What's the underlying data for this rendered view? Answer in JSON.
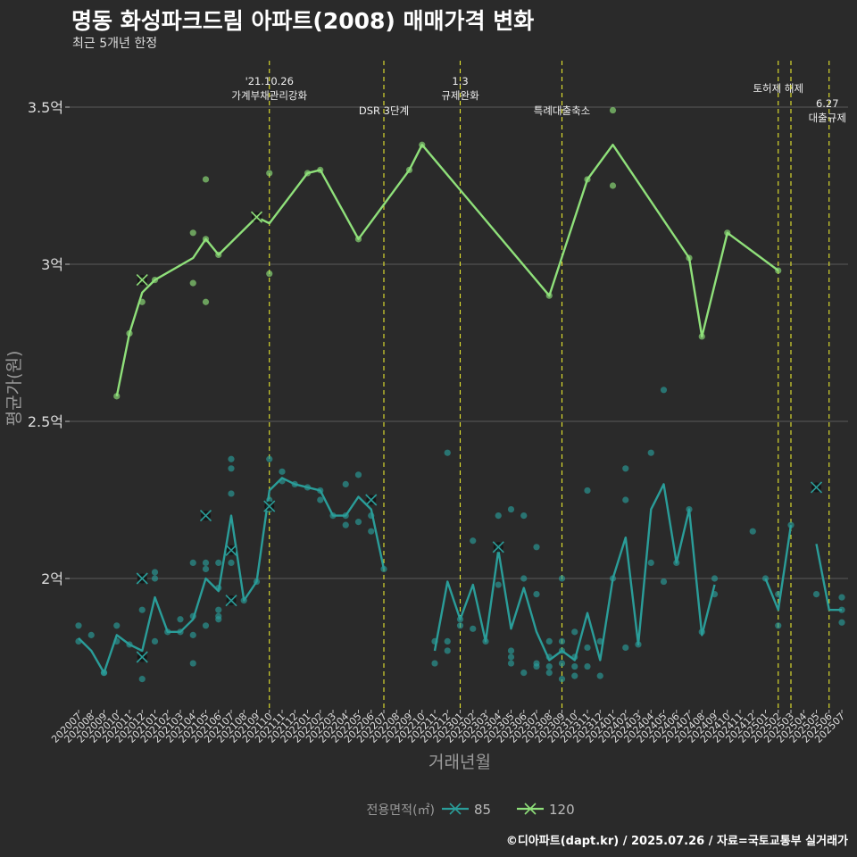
{
  "title": "명동 화성파크드림 아파트(2008) 매매가격 변화",
  "subtitle": "최근 5개년 한정",
  "caption": "©디아파트(dapt.kr) / 2025.07.26 / 자료=국토교통부 실거래가",
  "colors": {
    "background": "#2a2a2a",
    "grid": "#5a5a5a",
    "series_85": "#2a9d99",
    "series_120": "#8fe07a",
    "event_line": "#e6e62e",
    "text": "#e8e8e8"
  },
  "chart_data": {
    "type": "line",
    "xlabel": "거래년월",
    "ylabel": "평균가(원)",
    "ylim": [
      1.6,
      3.65
    ],
    "y_unit": "억",
    "yticks": [
      {
        "v": 2.0,
        "label": "2억"
      },
      {
        "v": 2.5,
        "label": "2.5억"
      },
      {
        "v": 3.0,
        "label": "3억"
      },
      {
        "v": 3.5,
        "label": "3.5억"
      }
    ],
    "grid": true,
    "x_categories": [
      "202007",
      "202008",
      "202009",
      "202010",
      "202011",
      "202012",
      "202101",
      "202102",
      "202103",
      "202104",
      "202105",
      "202106",
      "202107",
      "202108",
      "202109",
      "202110",
      "202111",
      "202112",
      "202201",
      "202202",
      "202203",
      "202204",
      "202205",
      "202206",
      "202207",
      "202208",
      "202209",
      "202210",
      "202211",
      "202212",
      "202301",
      "202302",
      "202303",
      "202304",
      "202305",
      "202306",
      "202307",
      "202308",
      "202309",
      "202310",
      "202311",
      "202312",
      "202401",
      "202402",
      "202403",
      "202404",
      "202405",
      "202406",
      "202407",
      "202408",
      "202409",
      "202410",
      "202411",
      "202412",
      "202501",
      "202502",
      "202503",
      "202504",
      "202505",
      "202506",
      "202507"
    ],
    "legend": {
      "title": "전용면적(㎡)",
      "placement": "bottom",
      "items": [
        "85",
        "120"
      ]
    },
    "events": [
      {
        "month": "202110",
        "label": "'21.10.26\n가계부채관리강화"
      },
      {
        "month": "202207",
        "label": "DSR 3단계"
      },
      {
        "month": "202301",
        "label": "1.3\n규제완화"
      },
      {
        "month": "202309",
        "label": "특례대출축소"
      },
      {
        "month": "202502",
        "label": "토허제 해제"
      },
      {
        "month": "202503",
        "label": ""
      },
      {
        "month": "202506",
        "label": "6.27\n대출규제"
      }
    ],
    "series": [
      {
        "name": "85",
        "line": [
          [
            0,
            1.81
          ],
          [
            1,
            1.77
          ],
          [
            2,
            1.7
          ],
          [
            3,
            1.82
          ],
          [
            4,
            1.79
          ],
          [
            5,
            1.77
          ],
          [
            6,
            1.94
          ],
          [
            7,
            1.83
          ],
          [
            8,
            1.83
          ],
          [
            9,
            1.87
          ],
          [
            10,
            2.0
          ],
          [
            11,
            1.96
          ],
          [
            12,
            2.2
          ],
          [
            13,
            1.93
          ],
          [
            14,
            1.99
          ],
          [
            15,
            2.28
          ],
          [
            16,
            2.32
          ],
          [
            17,
            2.3
          ],
          [
            18,
            2.29
          ],
          [
            19,
            2.28
          ],
          [
            20,
            2.2
          ],
          [
            21,
            2.2
          ],
          [
            22,
            2.26
          ],
          [
            23,
            2.22
          ],
          [
            24,
            2.03
          ],
          null,
          null,
          null,
          [
            28,
            1.77
          ],
          [
            29,
            1.99
          ],
          [
            30,
            1.87
          ],
          [
            31,
            1.98
          ],
          [
            32,
            1.8
          ],
          [
            33,
            2.09
          ],
          [
            34,
            1.84
          ],
          [
            35,
            1.97
          ],
          [
            36,
            1.83
          ],
          [
            37,
            1.74
          ],
          [
            38,
            1.77
          ],
          [
            39,
            1.74
          ],
          [
            40,
            1.89
          ],
          [
            41,
            1.74
          ],
          [
            42,
            2.0
          ],
          [
            43,
            2.13
          ],
          [
            44,
            1.79
          ],
          [
            45,
            2.22
          ],
          [
            46,
            2.3
          ],
          [
            47,
            2.05
          ],
          [
            48,
            2.22
          ],
          [
            49,
            1.82
          ],
          [
            50,
            1.98
          ],
          null,
          null,
          null,
          [
            54,
            2.0
          ],
          [
            55,
            1.9
          ],
          [
            56,
            2.17
          ],
          null,
          [
            58,
            2.11
          ],
          [
            59,
            1.9
          ],
          [
            60,
            1.9
          ]
        ],
        "points": [
          [
            0,
            1.85
          ],
          [
            0,
            1.8
          ],
          [
            1,
            1.82
          ],
          [
            2,
            1.7
          ],
          [
            2,
            1.7
          ],
          [
            3,
            1.85
          ],
          [
            3,
            1.8
          ],
          [
            4,
            1.79
          ],
          [
            5,
            1.9
          ],
          [
            5,
            1.68
          ],
          [
            6,
            2.02
          ],
          [
            6,
            2.0
          ],
          [
            6,
            1.8
          ],
          [
            7,
            1.83
          ],
          [
            8,
            1.87
          ],
          [
            8,
            1.83
          ],
          [
            9,
            2.05
          ],
          [
            9,
            1.88
          ],
          [
            9,
            1.82
          ],
          [
            9,
            1.73
          ],
          [
            10,
            2.05
          ],
          [
            10,
            2.03
          ],
          [
            10,
            1.85
          ],
          [
            11,
            2.05
          ],
          [
            11,
            1.97
          ],
          [
            11,
            1.9
          ],
          [
            11,
            1.88
          ],
          [
            11,
            1.87
          ],
          [
            12,
            2.38
          ],
          [
            12,
            2.35
          ],
          [
            12,
            2.27
          ],
          [
            12,
            2.05
          ],
          [
            12,
            1.93
          ],
          [
            13,
            1.93
          ],
          [
            14,
            1.99
          ],
          [
            15,
            2.38
          ],
          [
            15,
            2.25
          ],
          [
            15,
            2.22
          ],
          [
            16,
            2.34
          ],
          [
            16,
            2.31
          ],
          [
            17,
            2.3
          ],
          [
            18,
            2.29
          ],
          [
            19,
            2.28
          ],
          [
            19,
            2.25
          ],
          [
            20,
            2.2
          ],
          [
            21,
            2.3
          ],
          [
            21,
            2.2
          ],
          [
            21,
            2.17
          ],
          [
            22,
            2.33
          ],
          [
            22,
            2.18
          ],
          [
            23,
            2.2
          ],
          [
            23,
            2.15
          ],
          [
            24,
            2.03
          ],
          [
            28,
            1.8
          ],
          [
            28,
            1.73
          ],
          [
            29,
            2.4
          ],
          [
            29,
            1.8
          ],
          [
            29,
            1.77
          ],
          [
            30,
            1.87
          ],
          [
            30,
            1.85
          ],
          [
            31,
            2.12
          ],
          [
            31,
            1.84
          ],
          [
            32,
            1.8
          ],
          [
            33,
            2.2
          ],
          [
            33,
            2.1
          ],
          [
            33,
            1.98
          ],
          [
            34,
            2.22
          ],
          [
            34,
            1.77
          ],
          [
            34,
            1.75
          ],
          [
            34,
            1.73
          ],
          [
            35,
            2.2
          ],
          [
            35,
            2.0
          ],
          [
            35,
            1.7
          ],
          [
            36,
            2.1
          ],
          [
            36,
            1.95
          ],
          [
            36,
            1.73
          ],
          [
            36,
            1.72
          ],
          [
            37,
            1.8
          ],
          [
            37,
            1.75
          ],
          [
            37,
            1.72
          ],
          [
            37,
            1.7
          ],
          [
            38,
            2.0
          ],
          [
            38,
            1.8
          ],
          [
            38,
            1.77
          ],
          [
            38,
            1.73
          ],
          [
            38,
            1.68
          ],
          [
            39,
            1.83
          ],
          [
            39,
            1.75
          ],
          [
            39,
            1.72
          ],
          [
            39,
            1.69
          ],
          [
            40,
            2.28
          ],
          [
            40,
            1.78
          ],
          [
            40,
            1.72
          ],
          [
            41,
            1.8
          ],
          [
            41,
            1.69
          ],
          [
            42,
            2.0
          ],
          [
            43,
            2.35
          ],
          [
            43,
            2.25
          ],
          [
            43,
            1.78
          ],
          [
            44,
            1.79
          ],
          [
            45,
            2.4
          ],
          [
            45,
            2.05
          ],
          [
            46,
            2.6
          ],
          [
            46,
            1.99
          ],
          [
            47,
            2.05
          ],
          [
            48,
            2.22
          ],
          [
            49,
            1.83
          ],
          [
            50,
            2.0
          ],
          [
            50,
            1.95
          ],
          [
            53,
            2.15
          ],
          [
            54,
            2.0
          ],
          [
            55,
            1.95
          ],
          [
            55,
            1.85
          ],
          [
            56,
            2.17
          ],
          [
            58,
            1.95
          ],
          [
            60,
            1.94
          ],
          [
            60,
            1.9
          ],
          [
            60,
            1.86
          ]
        ],
        "marked_points": [
          [
            5,
            2.0
          ],
          [
            5,
            1.75
          ],
          [
            10,
            2.2
          ],
          [
            12,
            2.09
          ],
          [
            12,
            1.93
          ],
          [
            15,
            2.23
          ],
          [
            23,
            2.25
          ],
          [
            33,
            2.1
          ],
          [
            58,
            2.29
          ]
        ]
      },
      {
        "name": "120",
        "line": [
          [
            3,
            2.58
          ],
          [
            4,
            2.78
          ],
          [
            5,
            2.91
          ],
          [
            6,
            2.95
          ],
          [
            9,
            3.02
          ],
          [
            10,
            3.08
          ],
          [
            11,
            3.03
          ],
          [
            14,
            3.15
          ],
          [
            15,
            3.13
          ],
          [
            18,
            3.29
          ],
          [
            19,
            3.3
          ],
          [
            22,
            3.08
          ],
          [
            26,
            3.3
          ],
          [
            27,
            3.38
          ],
          [
            37,
            2.9
          ],
          [
            40,
            3.27
          ],
          [
            42,
            3.38
          ],
          [
            48,
            3.02
          ],
          [
            49,
            2.77
          ],
          [
            51,
            3.1
          ],
          [
            55,
            2.98
          ]
        ],
        "points": [
          [
            3,
            2.58
          ],
          [
            4,
            2.78
          ],
          [
            5,
            2.95
          ],
          [
            5,
            2.88
          ],
          [
            6,
            2.95
          ],
          [
            9,
            3.1
          ],
          [
            9,
            2.94
          ],
          [
            10,
            3.27
          ],
          [
            10,
            3.08
          ],
          [
            10,
            2.88
          ],
          [
            11,
            3.03
          ],
          [
            14,
            3.15
          ],
          [
            15,
            3.29
          ],
          [
            15,
            2.97
          ],
          [
            18,
            3.29
          ],
          [
            19,
            3.3
          ],
          [
            22,
            3.08
          ],
          [
            26,
            3.3
          ],
          [
            27,
            3.38
          ],
          [
            37,
            2.9
          ],
          [
            40,
            3.27
          ],
          [
            42,
            3.49
          ],
          [
            42,
            3.25
          ],
          [
            48,
            3.02
          ],
          [
            49,
            2.77
          ],
          [
            51,
            3.1
          ],
          [
            55,
            2.98
          ]
        ],
        "marked_points": [
          [
            5,
            2.95
          ],
          [
            14,
            3.15
          ]
        ]
      }
    ]
  }
}
